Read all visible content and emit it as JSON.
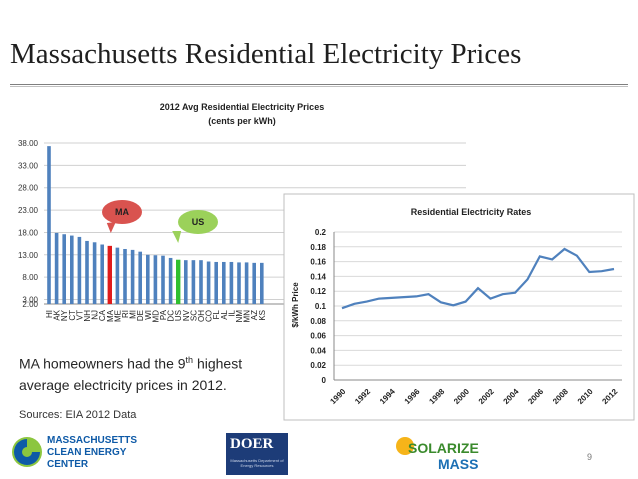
{
  "slide": {
    "title": "Massachusetts Residential Electricity Prices",
    "summary_line1_a": "MA homeowners had the 9",
    "summary_line1_sup": "th",
    "summary_line1_b": " highest",
    "summary_line2": "average electricity prices in 2012.",
    "sources": "Sources: EIA 2012 Data",
    "page_number": "9"
  },
  "logos": {
    "mcec_line1": "MASSACHUSETTS",
    "mcec_line2": "CLEAN ENERGY",
    "mcec_line3": "CENTER",
    "doer_big": "DOER",
    "doer_small": "Massachusetts Department of Energy Resources",
    "solarize_1": "SOLARIZE",
    "solarize_2": "MASS"
  },
  "colors": {
    "bar": "#4f81bd",
    "ma_bar": "#e01b1b",
    "us_bar": "#2fbf2f",
    "ma_callout": "#d9534f",
    "us_callout": "#9bd15a",
    "line": "#4f81bd"
  },
  "chart_data": [
    {
      "type": "bar",
      "title": "2012 Avg Residential Electricity Prices",
      "subtitle": "(cents per kWh)",
      "categories": [
        "HI",
        "AK",
        "NY",
        "CT",
        "VT",
        "NH",
        "NJ",
        "CA",
        "MA",
        "ME",
        "RI",
        "MI",
        "DE",
        "WI",
        "MD",
        "PA",
        "DC",
        "US",
        "NV",
        "SC",
        "OH",
        "CO",
        "FL",
        "AL",
        "IL",
        "NM",
        "MN",
        "AZ",
        "KS"
      ],
      "values": [
        37.3,
        17.9,
        17.6,
        17.3,
        17.0,
        16.1,
        15.8,
        15.3,
        15.0,
        14.6,
        14.3,
        14.1,
        13.7,
        13.0,
        12.9,
        12.8,
        12.3,
        11.9,
        11.8,
        11.8,
        11.8,
        11.5,
        11.4,
        11.4,
        11.4,
        11.3,
        11.3,
        11.2,
        11.2
      ],
      "highlight": {
        "MA": "ma_bar",
        "US": "us_bar"
      },
      "callouts": [
        {
          "label": "MA",
          "category": "MA"
        },
        {
          "label": "US",
          "category": "US"
        }
      ],
      "yticks": [
        "2.00",
        "3.00",
        "8.00",
        "13.00",
        "18.00",
        "23.00",
        "28.00",
        "33.00",
        "38.00"
      ],
      "ylim": [
        2,
        38
      ],
      "grid": true
    },
    {
      "type": "line",
      "title": "Residential Electricity Rates",
      "ylabel": "$/kWh Price",
      "x": [
        1990,
        1991,
        1992,
        1993,
        1994,
        1995,
        1996,
        1997,
        1998,
        1999,
        2000,
        2001,
        2002,
        2003,
        2004,
        2005,
        2006,
        2007,
        2008,
        2009,
        2010,
        2011,
        2012
      ],
      "y": [
        0.097,
        0.103,
        0.106,
        0.11,
        0.111,
        0.112,
        0.113,
        0.116,
        0.105,
        0.101,
        0.106,
        0.124,
        0.11,
        0.116,
        0.118,
        0.136,
        0.167,
        0.163,
        0.177,
        0.168,
        0.146,
        0.147,
        0.15
      ],
      "xticks": [
        "1990",
        "1992",
        "1994",
        "1996",
        "1998",
        "2000",
        "2002",
        "2004",
        "2006",
        "2008",
        "2010",
        "2012"
      ],
      "yticks": [
        "0",
        "0.02",
        "0.04",
        "0.06",
        "0.08",
        "0.1",
        "0.12",
        "0.14",
        "0.16",
        "0.18",
        "0.2"
      ],
      "ylim": [
        0,
        0.2
      ],
      "grid": true
    }
  ]
}
